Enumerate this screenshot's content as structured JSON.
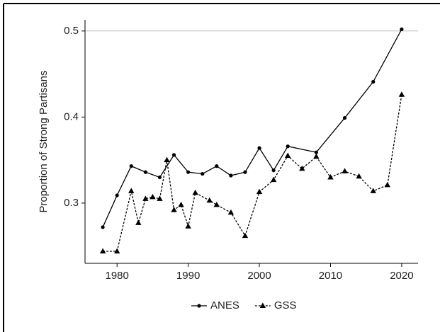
{
  "chart_data": {
    "type": "line",
    "y_label": "Proportion of Strong Partisans",
    "xlim": [
      1975.5,
      2022.3
    ],
    "xticks": [
      1980,
      1990,
      2000,
      2010,
      2020
    ],
    "ylim": [
      0.23,
      0.513
    ],
    "yticks": [
      0.3,
      0.4,
      0.5
    ],
    "reference_line": 0.5,
    "legend": "bottom",
    "series": [
      {
        "name": "ANES",
        "color": "#000000",
        "dash": "solid",
        "marker": "circle",
        "x": [
          1978,
          1980,
          1982,
          1984,
          1986,
          1988,
          1990,
          1992,
          1994,
          1996,
          1998,
          2000,
          2002,
          2004,
          2008,
          2012,
          2016,
          2020
        ],
        "values": [
          0.272,
          0.309,
          0.343,
          0.336,
          0.33,
          0.356,
          0.336,
          0.334,
          0.343,
          0.332,
          0.336,
          0.364,
          0.338,
          0.366,
          0.359,
          0.399,
          0.441,
          0.502
        ]
      },
      {
        "name": "GSS",
        "color": "#000000",
        "dash": "dotted",
        "marker": "triangle",
        "x": [
          1978,
          1980,
          1982,
          1983,
          1984,
          1985,
          1986,
          1987,
          1988,
          1989,
          1990,
          1991,
          1993,
          1994,
          1996,
          1998,
          2000,
          2002,
          2004,
          2006,
          2008,
          2010,
          2012,
          2014,
          2016,
          2018,
          2020
        ],
        "values": [
          0.244,
          0.244,
          0.314,
          0.277,
          0.305,
          0.307,
          0.305,
          0.35,
          0.292,
          0.298,
          0.273,
          0.312,
          0.303,
          0.298,
          0.289,
          0.262,
          0.313,
          0.327,
          0.355,
          0.34,
          0.354,
          0.33,
          0.337,
          0.331,
          0.314,
          0.321,
          0.426
        ]
      }
    ]
  }
}
